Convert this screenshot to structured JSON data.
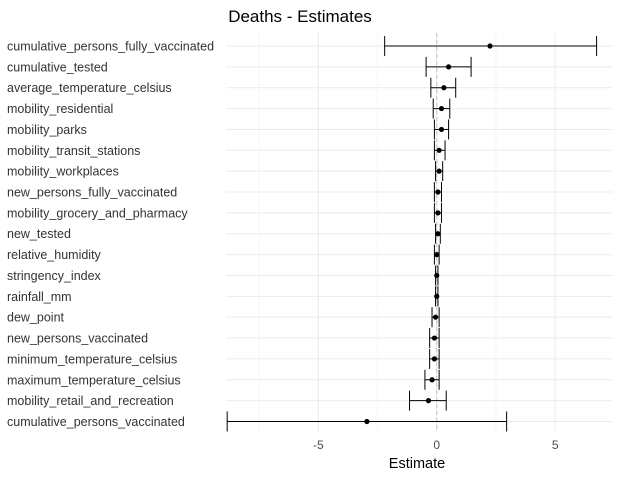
{
  "chart_data": {
    "type": "forest",
    "title": "Deaths - Estimates",
    "xlabel": "Estimate",
    "ylabel": "",
    "xlim": [
      -8.9,
      7.4
    ],
    "xticks": [
      -5,
      0,
      5
    ],
    "xtick_labels": [
      "-5",
      "0",
      "5"
    ],
    "grid": true,
    "reference_line": 0,
    "series": [
      {
        "label": "cumulative_persons_fully_vaccinated",
        "estimate": 2.25,
        "low": -2.2,
        "high": 6.75
      },
      {
        "label": "cumulative_tested",
        "estimate": 0.5,
        "low": -0.45,
        "high": 1.45
      },
      {
        "label": "average_temperature_celsius",
        "estimate": 0.3,
        "low": -0.25,
        "high": 0.8
      },
      {
        "label": "mobility_residential",
        "estimate": 0.2,
        "low": -0.15,
        "high": 0.55
      },
      {
        "label": "mobility_parks",
        "estimate": 0.2,
        "low": -0.1,
        "high": 0.5
      },
      {
        "label": "mobility_transit_stations",
        "estimate": 0.1,
        "low": -0.1,
        "high": 0.35
      },
      {
        "label": "mobility_workplaces",
        "estimate": 0.1,
        "low": -0.05,
        "high": 0.25
      },
      {
        "label": "new_persons_fully_vaccinated",
        "estimate": 0.05,
        "low": -0.1,
        "high": 0.2
      },
      {
        "label": "mobility_grocery_and_pharmacy",
        "estimate": 0.05,
        "low": -0.1,
        "high": 0.2
      },
      {
        "label": "new_tested",
        "estimate": 0.05,
        "low": -0.05,
        "high": 0.15
      },
      {
        "label": "relative_humidity",
        "estimate": 0.0,
        "low": -0.1,
        "high": 0.1
      },
      {
        "label": "stringency_index",
        "estimate": 0.0,
        "low": -0.05,
        "high": 0.05
      },
      {
        "label": "rainfall_mm",
        "estimate": 0.0,
        "low": -0.05,
        "high": 0.05
      },
      {
        "label": "dew_point",
        "estimate": -0.05,
        "low": -0.2,
        "high": 0.1
      },
      {
        "label": "new_persons_vaccinated",
        "estimate": -0.1,
        "low": -0.3,
        "high": 0.1
      },
      {
        "label": "minimum_temperature_celsius",
        "estimate": -0.1,
        "low": -0.3,
        "high": 0.1
      },
      {
        "label": "maximum_temperature_celsius",
        "estimate": -0.2,
        "low": -0.5,
        "high": 0.1
      },
      {
        "label": "mobility_retail_and_recreation",
        "estimate": -0.35,
        "low": -1.15,
        "high": 0.4
      },
      {
        "label": "cumulative_persons_vaccinated",
        "estimate": -2.95,
        "low": -8.85,
        "high": 2.95
      }
    ]
  }
}
